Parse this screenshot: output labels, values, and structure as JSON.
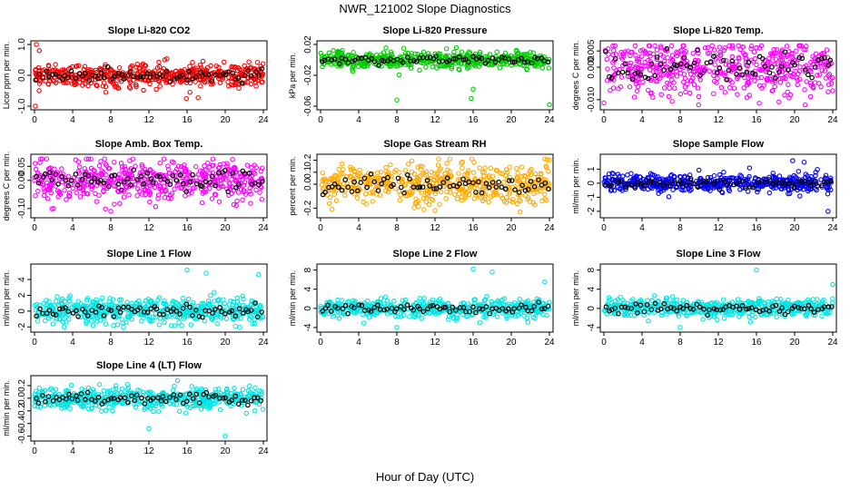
{
  "figure": {
    "title": "NWR_121002  Slope Diagnostics",
    "xlabel": "Hour of Day (UTC)"
  },
  "chart_data": [
    {
      "type": "scatter",
      "title": "Slope Li-820 CO2",
      "ylabel": "Licor ppm per min.",
      "xlabel": "",
      "xlim": [
        0,
        24
      ],
      "ylim": [
        -1.0,
        1.0
      ],
      "xticks": [
        "0",
        "4",
        "8",
        "12",
        "16",
        "20",
        "24"
      ],
      "yticks": [
        "-1.0",
        "0.0",
        "1.0"
      ],
      "ytick_values": [
        -1.0,
        0.0,
        1.0
      ],
      "color": "#ff0000",
      "spread": 0.18,
      "outliers": [
        [
          0.2,
          1.0
        ],
        [
          0.1,
          -1.0
        ],
        [
          0.5,
          0.8
        ],
        [
          16.3,
          -0.55
        ]
      ]
    },
    {
      "type": "scatter",
      "title": "Slope Li-820 Pressure",
      "ylabel": "kPa per min.",
      "xlabel": "",
      "xlim": [
        0,
        24
      ],
      "ylim": [
        -0.06,
        0.02
      ],
      "xticks": [
        "0",
        "4",
        "8",
        "12",
        "16",
        "20",
        "24"
      ],
      "yticks": [
        "-0.06",
        "-0.02",
        "0.02"
      ],
      "ytick_values": [
        -0.06,
        -0.02,
        0.02
      ],
      "color": "#00cc00",
      "spread": 0.005,
      "outliers": [
        [
          8,
          -0.052
        ],
        [
          16,
          -0.038
        ],
        [
          15.8,
          -0.05
        ],
        [
          24,
          -0.058
        ]
      ]
    },
    {
      "type": "scatter",
      "title": "Slope Li-820 Temp.",
      "ylabel": "degrees C per min.",
      "xlabel": "",
      "xlim": [
        0,
        24
      ],
      "ylim": [
        -0.012,
        0.007
      ],
      "xticks": [
        "0",
        "4",
        "8",
        "12",
        "16",
        "20",
        "24"
      ],
      "yticks": [
        "-0.010",
        "0.000",
        "0.005"
      ],
      "ytick_values": [
        -0.01,
        0.0,
        0.005
      ],
      "color": "#ff00ff",
      "spread": 0.004,
      "outliers": [
        [
          0,
          -0.011
        ],
        [
          16,
          0.006
        ],
        [
          2.5,
          0.005
        ]
      ]
    },
    {
      "type": "scatter",
      "title": "Slope Amb. Box Temp.",
      "ylabel": "degrees C per min.",
      "xlabel": "",
      "xlim": [
        0,
        24
      ],
      "ylim": [
        -0.12,
        0.08
      ],
      "xticks": [
        "0",
        "4",
        "8",
        "12",
        "16",
        "20",
        "24"
      ],
      "yticks": [
        "-0.10",
        "0.00",
        "0.05"
      ],
      "ytick_values": [
        -0.1,
        0.0,
        0.05
      ],
      "color": "#ff00ff",
      "spread": 0.035,
      "outliers": [
        [
          8,
          -0.11
        ],
        [
          10,
          0.07
        ],
        [
          2,
          -0.1
        ]
      ]
    },
    {
      "type": "scatter",
      "title": "Slope Gas Stream RH",
      "ylabel": "percent per min.",
      "xlabel": "",
      "xlim": [
        0,
        24
      ],
      "ylim": [
        -0.25,
        0.22
      ],
      "xticks": [
        "0",
        "4",
        "8",
        "12",
        "16",
        "20",
        "24"
      ],
      "yticks": [
        "-0.2",
        "0.0",
        "0.1",
        "0.2"
      ],
      "ytick_values": [
        -0.2,
        0.0,
        0.1,
        0.2
      ],
      "color": "#ffaa00",
      "spread": 0.08,
      "outliers": [
        [
          12,
          -0.22
        ],
        [
          24,
          0.2
        ]
      ]
    },
    {
      "type": "scatter",
      "title": "Slope Sample Flow",
      "ylabel": "ml/min per min.",
      "xlabel": "",
      "xlim": [
        0,
        24
      ],
      "ylim": [
        -2.2,
        1.8
      ],
      "xticks": [
        "0",
        "4",
        "8",
        "12",
        "16",
        "20",
        "24"
      ],
      "yticks": [
        "-2",
        "-1",
        "0",
        "1"
      ],
      "ytick_values": [
        -2,
        -1,
        0,
        1
      ],
      "color": "#0000ff",
      "spread": 0.3,
      "outliers": [
        [
          19.8,
          1.6
        ],
        [
          21,
          1.5
        ],
        [
          23.5,
          -2.0
        ]
      ]
    },
    {
      "type": "scatter",
      "title": "Slope Line 1 Flow",
      "ylabel": "ml/min per min.",
      "xlabel": "",
      "xlim": [
        0,
        24
      ],
      "ylim": [
        -2.2,
        5.5
      ],
      "xticks": [
        "0",
        "4",
        "8",
        "12",
        "16",
        "20",
        "24"
      ],
      "yticks": [
        "-2",
        "0",
        "2",
        "4"
      ],
      "ytick_values": [
        -2,
        0,
        2,
        4
      ],
      "color": "#00e5e5",
      "spread": 0.8,
      "outliers": [
        [
          16,
          5.2
        ],
        [
          18,
          4.8
        ],
        [
          23.5,
          4.6
        ]
      ]
    },
    {
      "type": "scatter",
      "title": "Slope Line 2 Flow",
      "ylabel": "ml/min per min.",
      "xlabel": "",
      "xlim": [
        0,
        24
      ],
      "ylim": [
        -4.2,
        8.5
      ],
      "xticks": [
        "0",
        "4",
        "8",
        "12",
        "16",
        "20",
        "24"
      ],
      "yticks": [
        "-4",
        "0",
        "4",
        "8"
      ],
      "ytick_values": [
        -4,
        0,
        4,
        8
      ],
      "color": "#00e5e5",
      "spread": 0.9,
      "outliers": [
        [
          16,
          8.2
        ],
        [
          18,
          7.6
        ],
        [
          23.5,
          5.5
        ],
        [
          8,
          -4.0
        ]
      ]
    },
    {
      "type": "scatter",
      "title": "Slope Line 3 Flow",
      "ylabel": "ml/min per min.",
      "xlabel": "",
      "xlim": [
        0,
        24
      ],
      "ylim": [
        -4.2,
        8.5
      ],
      "xticks": [
        "0",
        "4",
        "8",
        "12",
        "16",
        "20",
        "24"
      ],
      "yticks": [
        "-4",
        "0",
        "4",
        "8"
      ],
      "ytick_values": [
        -4,
        0,
        4,
        8
      ],
      "color": "#00e5e5",
      "spread": 0.9,
      "outliers": [
        [
          16,
          8.0
        ],
        [
          24,
          5.0
        ],
        [
          8,
          -4.0
        ]
      ]
    },
    {
      "type": "scatter",
      "title": "Slope Line 4 (LT) Flow",
      "ylabel": "ml/min per min.",
      "xlabel": "",
      "xlim": [
        0,
        24
      ],
      "ylim": [
        -0.62,
        0.3
      ],
      "xticks": [
        "0",
        "4",
        "8",
        "12",
        "16",
        "20",
        "24"
      ],
      "yticks": [
        "-0.6",
        "-0.4",
        "-0.2",
        "0.0",
        "0.2"
      ],
      "ytick_values": [
        -0.6,
        -0.4,
        -0.2,
        0.0,
        0.2
      ],
      "color": "#00e5e5",
      "spread": 0.08,
      "outliers": [
        [
          12,
          -0.48
        ],
        [
          20,
          -0.6
        ],
        [
          15,
          0.28
        ]
      ]
    }
  ]
}
